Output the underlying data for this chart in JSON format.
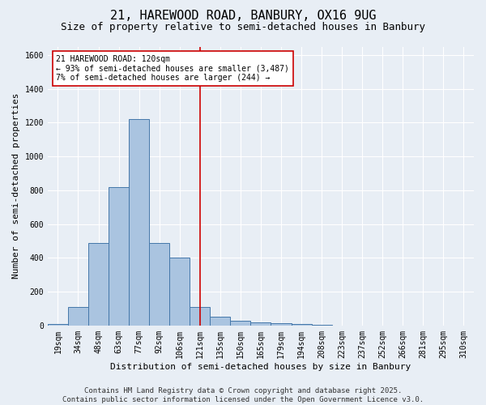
{
  "title_line1": "21, HAREWOOD ROAD, BANBURY, OX16 9UG",
  "title_line2": "Size of property relative to semi-detached houses in Banbury",
  "xlabel": "Distribution of semi-detached houses by size in Banbury",
  "ylabel": "Number of semi-detached properties",
  "bar_labels": [
    "19sqm",
    "34sqm",
    "48sqm",
    "63sqm",
    "77sqm",
    "92sqm",
    "106sqm",
    "121sqm",
    "135sqm",
    "150sqm",
    "165sqm",
    "179sqm",
    "194sqm",
    "208sqm",
    "223sqm",
    "237sqm",
    "252sqm",
    "266sqm",
    "281sqm",
    "295sqm",
    "310sqm"
  ],
  "bar_values": [
    10,
    110,
    490,
    820,
    1220,
    490,
    400,
    110,
    50,
    30,
    20,
    12,
    10,
    5,
    0,
    0,
    0,
    0,
    0,
    0,
    0
  ],
  "bar_color": "#aac4e0",
  "bar_edgecolor": "#4477aa",
  "vline_x": 7.0,
  "vline_color": "#cc0000",
  "annotation_title": "21 HAREWOOD ROAD: 120sqm",
  "annotation_line2": "← 93% of semi-detached houses are smaller (3,487)",
  "annotation_line3": "7% of semi-detached houses are larger (244) →",
  "annotation_box_edgecolor": "#cc0000",
  "ylim": [
    0,
    1650
  ],
  "yticks": [
    0,
    200,
    400,
    600,
    800,
    1000,
    1200,
    1400,
    1600
  ],
  "footer_line1": "Contains HM Land Registry data © Crown copyright and database right 2025.",
  "footer_line2": "Contains public sector information licensed under the Open Government Licence v3.0.",
  "background_color": "#e8eef5",
  "plot_background": "#e8eef5",
  "grid_color": "#ffffff",
  "title_fontsize": 11,
  "subtitle_fontsize": 9,
  "axis_label_fontsize": 8,
  "tick_fontsize": 7,
  "annotation_fontsize": 7,
  "footer_fontsize": 6.5
}
